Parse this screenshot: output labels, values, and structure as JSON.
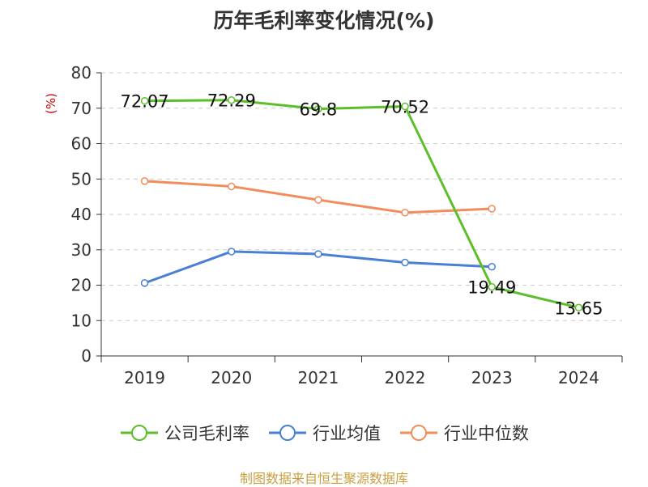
{
  "chart_data": {
    "type": "line",
    "title": "历年毛利率变化情况(%)",
    "ylabel": "(%)",
    "categories": [
      "2019",
      "2020",
      "2021",
      "2022",
      "2023",
      "2024"
    ],
    "ylim": [
      0,
      80
    ],
    "yticks": [
      0,
      10,
      20,
      30,
      40,
      50,
      60,
      70,
      80
    ],
    "grid": true,
    "legend_position": "bottom",
    "series": [
      {
        "name": "公司毛利率",
        "color": "#5cbf2a",
        "values": [
          72.07,
          72.29,
          69.8,
          70.52,
          19.49,
          13.65
        ],
        "data_labels": [
          "72.07",
          "72.29",
          "69.8",
          "70.52",
          "19.49",
          "13.65"
        ]
      },
      {
        "name": "行业均值",
        "color": "#4a7fd6",
        "values": [
          20.6,
          29.5,
          28.8,
          26.4,
          25.2,
          null
        ]
      },
      {
        "name": "行业中位数",
        "color": "#f28c5a",
        "values": [
          49.4,
          47.9,
          44.1,
          40.5,
          41.6,
          null
        ]
      }
    ]
  },
  "source_note": "制图数据来自恒生聚源数据库"
}
